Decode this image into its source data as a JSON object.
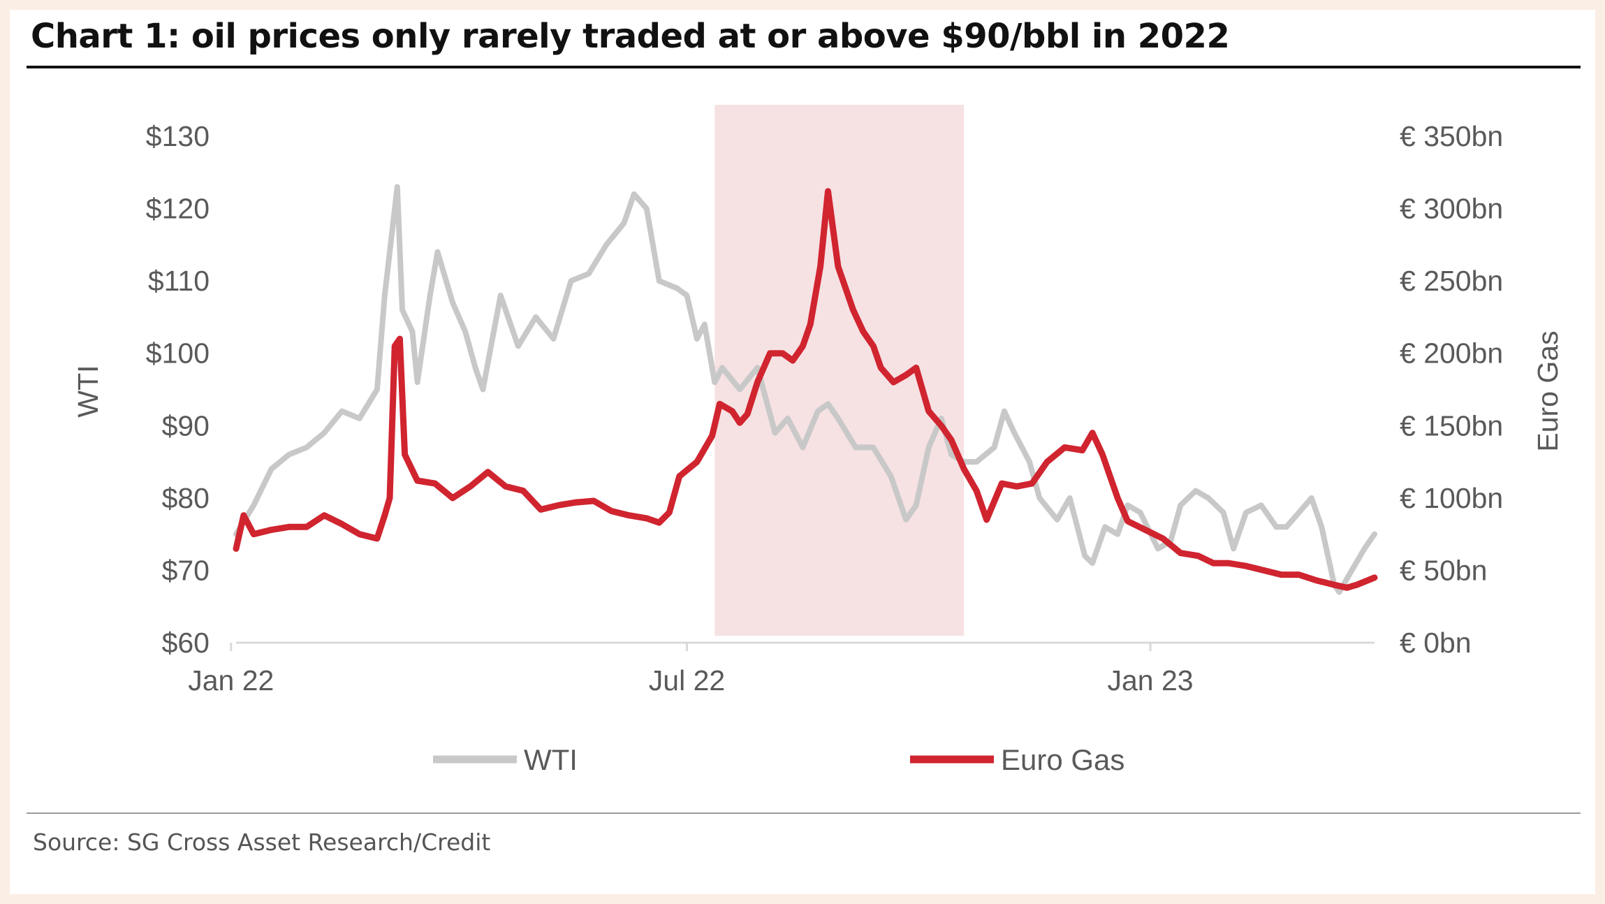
{
  "title": "Chart 1: oil prices only rarely traded at or above $90/bbl in 2022",
  "source": "Source: SG Cross Asset Research/Credit",
  "chart_data": {
    "type": "line",
    "x_type": "date",
    "xlim": [
      "2022-01-03",
      "2023-03-31"
    ],
    "x_ticks": [
      {
        "date": "2022-01-01",
        "label": "Jan 22"
      },
      {
        "date": "2022-07-01",
        "label": "Jul 22"
      },
      {
        "date": "2023-01-01",
        "label": "Jan 23"
      }
    ],
    "ylabel_left": "WTI",
    "ylim_left": [
      60,
      130
    ],
    "left_ticks": [
      {
        "value": 130,
        "label": "$130"
      },
      {
        "value": 120,
        "label": "$120"
      },
      {
        "value": 110,
        "label": "$110"
      },
      {
        "value": 100,
        "label": "$100"
      },
      {
        "value": 90,
        "label": "$90"
      },
      {
        "value": 80,
        "label": "$80"
      },
      {
        "value": 70,
        "label": "$70"
      },
      {
        "value": 60,
        "label": "$60"
      }
    ],
    "ylabel_right": "Euro Gas",
    "ylim_right": [
      0,
      350
    ],
    "right_ticks": [
      {
        "value": 350,
        "label": "€ 350bn"
      },
      {
        "value": 300,
        "label": "€ 300bn"
      },
      {
        "value": 250,
        "label": "€ 250bn"
      },
      {
        "value": 200,
        "label": "€ 200bn"
      },
      {
        "value": 150,
        "label": "€ 150bn"
      },
      {
        "value": 100,
        "label": "€ 100bn"
      },
      {
        "value": 50,
        "label": "€ 50bn"
      },
      {
        "value": 0,
        "label": "€ 0bn"
      }
    ],
    "shaded_region": {
      "start": "2022-07-12",
      "end": "2022-10-19",
      "color": "#f6e1e3"
    },
    "grid": false,
    "legend_position": "bottom",
    "series": [
      {
        "name": "WTI",
        "axis": "left",
        "color": "#c8c8c8",
        "points": [
          [
            "2022-01-03",
            75
          ],
          [
            "2022-01-10",
            79
          ],
          [
            "2022-01-17",
            84
          ],
          [
            "2022-01-24",
            86
          ],
          [
            "2022-01-31",
            87
          ],
          [
            "2022-02-07",
            89
          ],
          [
            "2022-02-14",
            92
          ],
          [
            "2022-02-21",
            91
          ],
          [
            "2022-02-28",
            95
          ],
          [
            "2022-03-03",
            108
          ],
          [
            "2022-03-08",
            123
          ],
          [
            "2022-03-10",
            106
          ],
          [
            "2022-03-14",
            103
          ],
          [
            "2022-03-16",
            96
          ],
          [
            "2022-03-21",
            108
          ],
          [
            "2022-03-24",
            114
          ],
          [
            "2022-03-30",
            107
          ],
          [
            "2022-04-04",
            103
          ],
          [
            "2022-04-08",
            98
          ],
          [
            "2022-04-11",
            95
          ],
          [
            "2022-04-18",
            108
          ],
          [
            "2022-04-25",
            101
          ],
          [
            "2022-05-02",
            105
          ],
          [
            "2022-05-09",
            102
          ],
          [
            "2022-05-16",
            110
          ],
          [
            "2022-05-23",
            111
          ],
          [
            "2022-05-30",
            115
          ],
          [
            "2022-06-06",
            118
          ],
          [
            "2022-06-10",
            122
          ],
          [
            "2022-06-15",
            120
          ],
          [
            "2022-06-20",
            110
          ],
          [
            "2022-06-27",
            109
          ],
          [
            "2022-07-01",
            108
          ],
          [
            "2022-07-05",
            102
          ],
          [
            "2022-07-08",
            104
          ],
          [
            "2022-07-12",
            96
          ],
          [
            "2022-07-15",
            98
          ],
          [
            "2022-07-22",
            95
          ],
          [
            "2022-07-29",
            98
          ],
          [
            "2022-08-05",
            89
          ],
          [
            "2022-08-10",
            91
          ],
          [
            "2022-08-16",
            87
          ],
          [
            "2022-08-22",
            92
          ],
          [
            "2022-08-26",
            93
          ],
          [
            "2022-08-30",
            91
          ],
          [
            "2022-09-06",
            87
          ],
          [
            "2022-09-13",
            87
          ],
          [
            "2022-09-20",
            83
          ],
          [
            "2022-09-26",
            77
          ],
          [
            "2022-09-30",
            79
          ],
          [
            "2022-10-05",
            87
          ],
          [
            "2022-10-10",
            91
          ],
          [
            "2022-10-14",
            86
          ],
          [
            "2022-10-19",
            85
          ],
          [
            "2022-10-24",
            85
          ],
          [
            "2022-10-31",
            87
          ],
          [
            "2022-11-04",
            92
          ],
          [
            "2022-11-08",
            89
          ],
          [
            "2022-11-14",
            85
          ],
          [
            "2022-11-18",
            80
          ],
          [
            "2022-11-25",
            77
          ],
          [
            "2022-11-30",
            80
          ],
          [
            "2022-12-06",
            72
          ],
          [
            "2022-12-09",
            71
          ],
          [
            "2022-12-14",
            76
          ],
          [
            "2022-12-19",
            75
          ],
          [
            "2022-12-23",
            79
          ],
          [
            "2022-12-28",
            78
          ],
          [
            "2023-01-04",
            73
          ],
          [
            "2023-01-09",
            74
          ],
          [
            "2023-01-13",
            79
          ],
          [
            "2023-01-19",
            81
          ],
          [
            "2023-01-24",
            80
          ],
          [
            "2023-01-30",
            78
          ],
          [
            "2023-02-03",
            73
          ],
          [
            "2023-02-08",
            78
          ],
          [
            "2023-02-14",
            79
          ],
          [
            "2023-02-20",
            76
          ],
          [
            "2023-02-24",
            76
          ],
          [
            "2023-03-01",
            78
          ],
          [
            "2023-03-06",
            80
          ],
          [
            "2023-03-10",
            76
          ],
          [
            "2023-03-15",
            68
          ],
          [
            "2023-03-17",
            67
          ],
          [
            "2023-03-22",
            70
          ],
          [
            "2023-03-27",
            73
          ],
          [
            "2023-03-31",
            75
          ]
        ]
      },
      {
        "name": "Euro Gas",
        "axis": "right",
        "color": "#d0242f",
        "points": [
          [
            "2022-01-03",
            65
          ],
          [
            "2022-01-06",
            88
          ],
          [
            "2022-01-10",
            75
          ],
          [
            "2022-01-17",
            78
          ],
          [
            "2022-01-24",
            80
          ],
          [
            "2022-01-31",
            80
          ],
          [
            "2022-02-07",
            88
          ],
          [
            "2022-02-14",
            82
          ],
          [
            "2022-02-21",
            75
          ],
          [
            "2022-02-28",
            72
          ],
          [
            "2022-03-03",
            88
          ],
          [
            "2022-03-05",
            100
          ],
          [
            "2022-03-07",
            205
          ],
          [
            "2022-03-09",
            210
          ],
          [
            "2022-03-11",
            130
          ],
          [
            "2022-03-16",
            112
          ],
          [
            "2022-03-23",
            110
          ],
          [
            "2022-03-30",
            100
          ],
          [
            "2022-04-06",
            108
          ],
          [
            "2022-04-13",
            118
          ],
          [
            "2022-04-20",
            108
          ],
          [
            "2022-04-27",
            105
          ],
          [
            "2022-05-04",
            92
          ],
          [
            "2022-05-11",
            95
          ],
          [
            "2022-05-18",
            97
          ],
          [
            "2022-05-25",
            98
          ],
          [
            "2022-06-01",
            91
          ],
          [
            "2022-06-08",
            88
          ],
          [
            "2022-06-15",
            86
          ],
          [
            "2022-06-20",
            83
          ],
          [
            "2022-06-24",
            90
          ],
          [
            "2022-06-28",
            115
          ],
          [
            "2022-07-05",
            125
          ],
          [
            "2022-07-11",
            143
          ],
          [
            "2022-07-14",
            165
          ],
          [
            "2022-07-19",
            160
          ],
          [
            "2022-07-22",
            152
          ],
          [
            "2022-07-25",
            158
          ],
          [
            "2022-07-29",
            180
          ],
          [
            "2022-08-03",
            200
          ],
          [
            "2022-08-08",
            200
          ],
          [
            "2022-08-12",
            195
          ],
          [
            "2022-08-16",
            205
          ],
          [
            "2022-08-19",
            220
          ],
          [
            "2022-08-23",
            260
          ],
          [
            "2022-08-26",
            312
          ],
          [
            "2022-08-30",
            260
          ],
          [
            "2022-09-05",
            230
          ],
          [
            "2022-09-09",
            215
          ],
          [
            "2022-09-13",
            205
          ],
          [
            "2022-09-16",
            190
          ],
          [
            "2022-09-21",
            180
          ],
          [
            "2022-09-26",
            185
          ],
          [
            "2022-09-30",
            190
          ],
          [
            "2022-10-05",
            160
          ],
          [
            "2022-10-10",
            150
          ],
          [
            "2022-10-14",
            140
          ],
          [
            "2022-10-19",
            120
          ],
          [
            "2022-10-24",
            105
          ],
          [
            "2022-10-28",
            85
          ],
          [
            "2022-11-03",
            110
          ],
          [
            "2022-11-09",
            108
          ],
          [
            "2022-11-15",
            110
          ],
          [
            "2022-11-21",
            125
          ],
          [
            "2022-11-28",
            135
          ],
          [
            "2022-12-05",
            133
          ],
          [
            "2022-12-09",
            145
          ],
          [
            "2022-12-13",
            130
          ],
          [
            "2022-12-19",
            100
          ],
          [
            "2022-12-23",
            84
          ],
          [
            "2022-12-30",
            78
          ],
          [
            "2023-01-06",
            72
          ],
          [
            "2023-01-13",
            62
          ],
          [
            "2023-01-20",
            60
          ],
          [
            "2023-01-26",
            55
          ],
          [
            "2023-02-01",
            55
          ],
          [
            "2023-02-08",
            53
          ],
          [
            "2023-02-15",
            50
          ],
          [
            "2023-02-22",
            47
          ],
          [
            "2023-03-01",
            47
          ],
          [
            "2023-03-08",
            43
          ],
          [
            "2023-03-15",
            40
          ],
          [
            "2023-03-20",
            38
          ],
          [
            "2023-03-24",
            40
          ],
          [
            "2023-03-31",
            45
          ]
        ]
      }
    ]
  }
}
